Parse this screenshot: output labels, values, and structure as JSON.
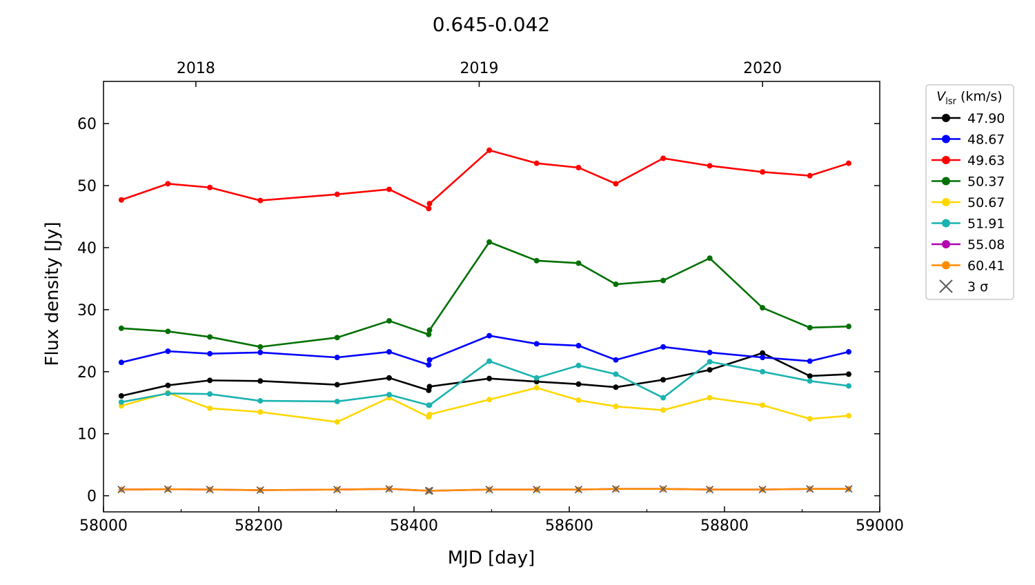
{
  "chart_data": {
    "type": "line",
    "title": "0.645-0.042",
    "xlabel": "MJD [day]",
    "ylabel": "Flux density [Jy]",
    "xlim": [
      58000,
      59000
    ],
    "ylim": [
      -2.6,
      66.8
    ],
    "xticks": [
      58000,
      58200,
      58400,
      58600,
      58800,
      59000
    ],
    "yticks": [
      0,
      10,
      20,
      30,
      40,
      50,
      60
    ],
    "top_axis": {
      "ticks": [
        {
          "label": "2018",
          "mjd": 58119
        },
        {
          "label": "2019",
          "mjd": 58484
        },
        {
          "label": "2020",
          "mjd": 58849
        }
      ]
    },
    "legend": {
      "title": "V_lsr (km/s)",
      "title_main": "V",
      "title_sub": "lsr",
      "title_rest": " (km/s)",
      "placement": "outside-right-top",
      "sigma_label": "3 σ"
    },
    "x": [
      58023,
      58083,
      58137,
      58202,
      58301,
      58368,
      58419,
      58420,
      58497,
      58558,
      58612,
      58660,
      58721,
      58781,
      58849,
      58910,
      58960
    ],
    "series": [
      {
        "name": "47.90",
        "color": "#000000",
        "values": [
          16.1,
          17.8,
          18.6,
          18.5,
          17.9,
          19.0,
          17.0,
          17.6,
          18.9,
          18.4,
          18.0,
          17.5,
          18.7,
          20.3,
          23.0,
          19.3,
          19.6
        ]
      },
      {
        "name": "48.67",
        "color": "#0000ff",
        "values": [
          21.5,
          23.3,
          22.9,
          23.1,
          22.3,
          23.2,
          21.1,
          21.9,
          25.8,
          24.5,
          24.2,
          21.9,
          24.0,
          23.1,
          22.3,
          21.7,
          23.2
        ]
      },
      {
        "name": "49.63",
        "color": "#ff0000",
        "values": [
          47.7,
          50.3,
          49.7,
          47.6,
          48.6,
          49.4,
          46.3,
          47.1,
          55.7,
          53.6,
          52.9,
          50.3,
          54.4,
          53.2,
          52.2,
          51.6,
          53.6
        ]
      },
      {
        "name": "50.37",
        "color": "#007000",
        "values": [
          27.0,
          26.5,
          25.6,
          24.0,
          25.5,
          28.2,
          26.0,
          26.7,
          40.9,
          37.9,
          37.5,
          34.1,
          34.7,
          38.3,
          30.3,
          27.1,
          27.3
        ]
      },
      {
        "name": "50.67",
        "color": "#ffd700",
        "values": [
          14.5,
          16.6,
          14.1,
          13.5,
          11.9,
          15.8,
          12.7,
          13.1,
          15.5,
          17.4,
          15.4,
          14.4,
          13.8,
          15.8,
          14.6,
          12.4,
          12.9
        ]
      },
      {
        "name": "51.91",
        "color": "#1ab3b0",
        "values": [
          15.1,
          16.5,
          16.4,
          15.3,
          15.2,
          16.3,
          14.6,
          14.6,
          21.7,
          19.0,
          21.0,
          19.6,
          15.8,
          21.6,
          20.0,
          18.5,
          17.7
        ]
      },
      {
        "name": "55.08",
        "color": "#b000b0",
        "values": [
          1.0,
          1.05,
          1.0,
          0.9,
          1.0,
          1.1,
          0.8,
          0.8,
          1.0,
          1.0,
          1.0,
          1.1,
          1.1,
          1.0,
          1.0,
          1.1,
          1.1
        ]
      },
      {
        "name": "60.41",
        "color": "#ff8c00",
        "values": [
          1.0,
          1.05,
          1.0,
          0.9,
          1.0,
          1.1,
          0.8,
          0.8,
          1.0,
          1.0,
          1.0,
          1.1,
          1.1,
          1.0,
          1.0,
          1.1,
          1.1
        ]
      }
    ],
    "sigma3": {
      "name": "3 σ",
      "color": "#606060",
      "values": [
        1.0,
        1.05,
        1.0,
        0.9,
        1.0,
        1.1,
        0.8,
        0.8,
        1.0,
        1.0,
        1.0,
        1.1,
        1.1,
        1.0,
        1.0,
        1.1,
        1.1
      ]
    }
  }
}
